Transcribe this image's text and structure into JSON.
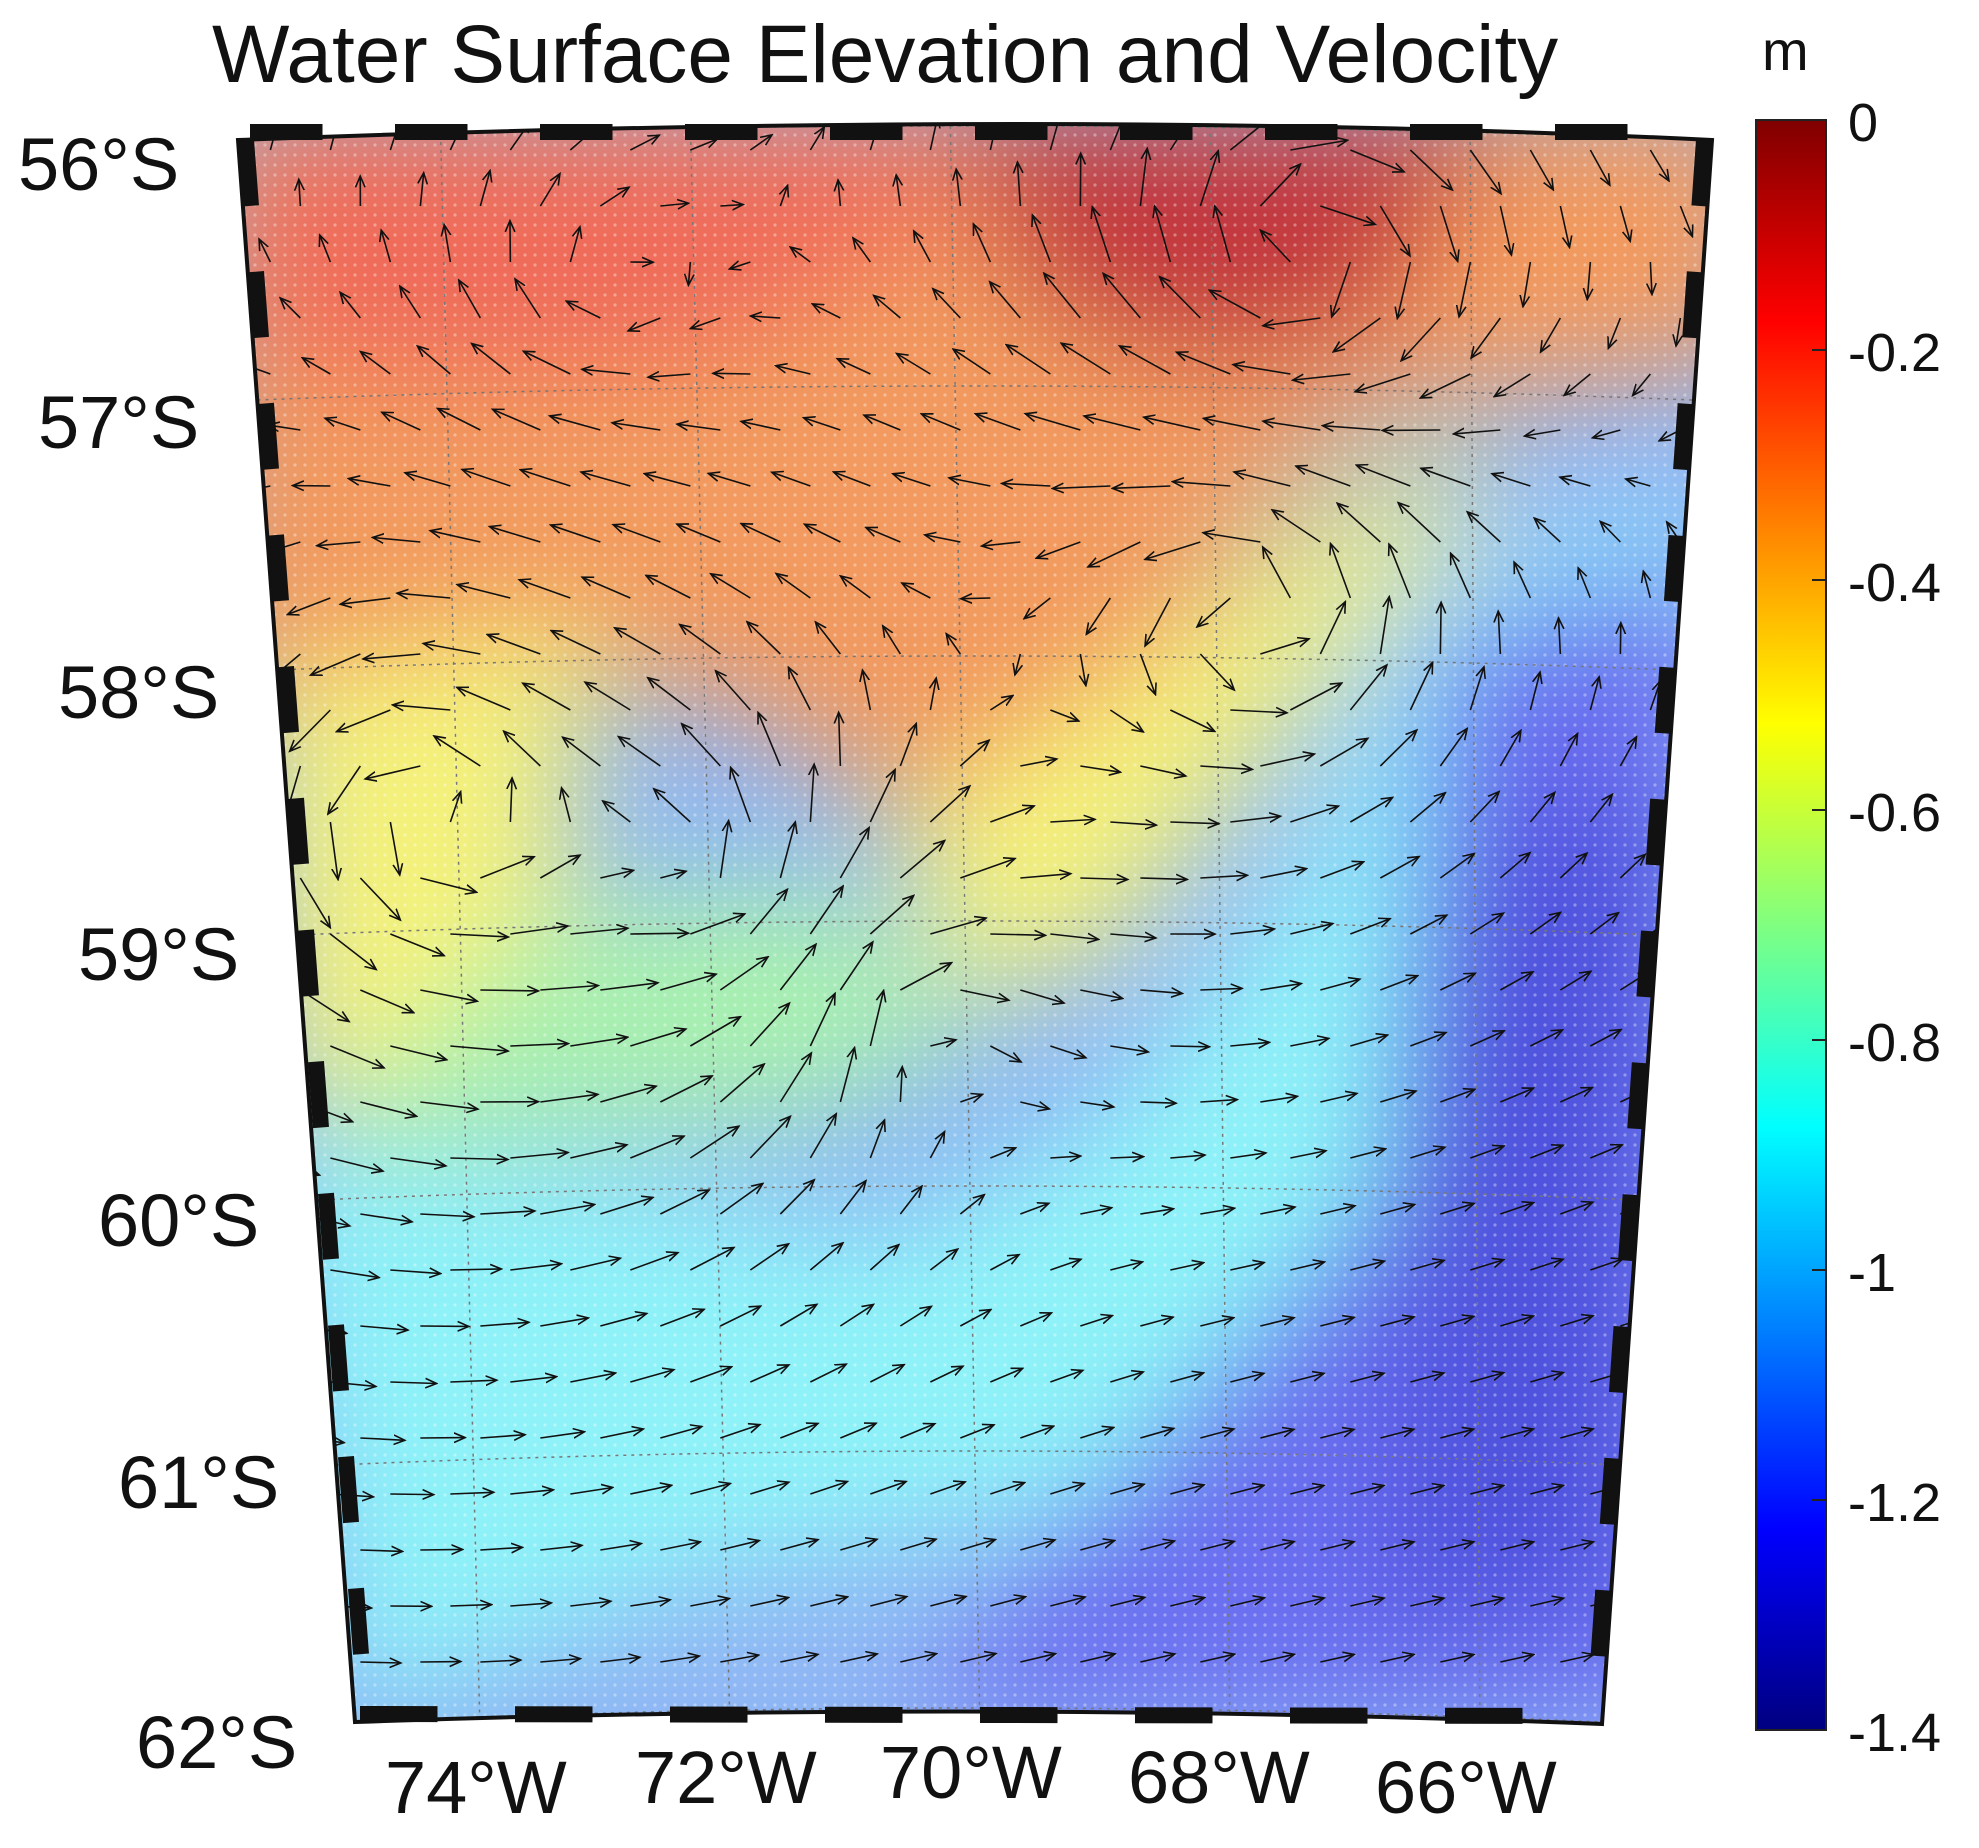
{
  "title": "Water Surface Elevation and Velocity",
  "colorbar": {
    "unit": "m",
    "ticks": [
      "0",
      "-0.2",
      "-0.4",
      "-0.6",
      "-0.8",
      "-1",
      "-1.2",
      "-1.4"
    ],
    "min": -1.4,
    "max": 0,
    "colors": [
      "#800000",
      "#ff0000",
      "#ff8000",
      "#ffff00",
      "#80ff80",
      "#00ffff",
      "#0080ff",
      "#0000ff",
      "#000080"
    ]
  },
  "map": {
    "lat_labels": [
      "56°S",
      "57°S",
      "58°S",
      "59°S",
      "60°S",
      "61°S",
      "62°S"
    ],
    "lon_labels": [
      "74°W",
      "72°W",
      "70°W",
      "68°W",
      "66°W"
    ],
    "colors": {
      "red": "#ef6a5a",
      "darkred": "#c2343d",
      "orange": "#f29a5e",
      "yellow": "#f4f17a",
      "green": "#a8f0b0",
      "cyan": "#8ef2f8",
      "lightblue": "#8fb6f4",
      "blue": "#6a6ef0",
      "navy": "#4f52de"
    }
  }
}
